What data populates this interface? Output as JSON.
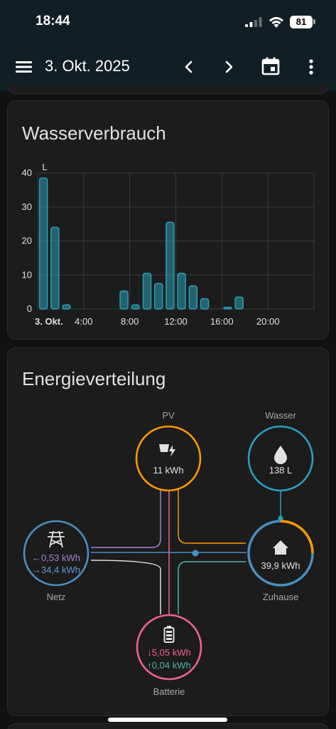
{
  "status_bar": {
    "time": "18:44",
    "battery": "81",
    "icons": [
      "signal-icon",
      "wifi-icon",
      "battery-icon"
    ]
  },
  "app_bar": {
    "title": "3. Okt. 2025",
    "icons": [
      "menu-icon",
      "chevron-left-icon",
      "chevron-right-icon",
      "calendar-icon",
      "more-vert-icon"
    ]
  },
  "water_card": {
    "title": "Wasserverbrauch"
  },
  "chart_data": {
    "type": "bar",
    "title": "Wasserverbrauch",
    "ylabel": "L",
    "ylim": [
      0,
      40
    ],
    "yticks": [
      "0",
      "10",
      "20",
      "30",
      "40"
    ],
    "xticks": [
      "3. Okt.",
      "4:00",
      "8:00",
      "12:00",
      "16:00",
      "20:00"
    ],
    "x_hours": [
      0,
      1,
      2,
      3,
      4,
      5,
      6,
      7,
      8,
      9,
      10,
      11,
      12,
      13,
      14,
      15,
      16,
      17,
      18,
      19,
      20,
      21,
      22,
      23
    ],
    "values": [
      38.5,
      24,
      1.2,
      0,
      0,
      0,
      0,
      5.3,
      1.2,
      10.5,
      7.5,
      25.5,
      10.5,
      6.8,
      3,
      0,
      0.5,
      3.5,
      0,
      0,
      0,
      0,
      0,
      0
    ],
    "color": "#2a9fb4",
    "grid": true
  },
  "energy_card": {
    "title": "Energieverteilung",
    "nodes": {
      "pv": {
        "label": "PV",
        "value": "11 kWh",
        "color": "#ff9800",
        "icon": "solar-power-icon"
      },
      "water": {
        "label": "Wasser",
        "value": "138 L",
        "color": "#26a0c2",
        "icon": "water-drop-icon"
      },
      "grid": {
        "label": "Netz",
        "value_in": "←0,53 kWh",
        "value_out": "→34,4 kWh",
        "color": "#488fc2",
        "in_color": "#a280db",
        "out_color": "#488fc2",
        "icon": "transmission-tower-icon"
      },
      "home": {
        "label": "Zuhause",
        "value": "39,9 kWh",
        "color": "#488fc2",
        "icon": "home-icon"
      },
      "battery": {
        "label": "Batterie",
        "value_out": "↓5,05 kWh",
        "value_in": "↑0,04 kWh",
        "color": "#f06292",
        "out_color": "#f06292",
        "in_color": "#4db6ac",
        "icon": "battery-icon"
      }
    },
    "home_ring_share": {
      "pv": 0.2,
      "grid": 0.8
    }
  },
  "colors": {
    "background": "#111111",
    "card": "#1c1c1c",
    "app_bar": "#101e25",
    "bar": "#2a9fb4"
  }
}
